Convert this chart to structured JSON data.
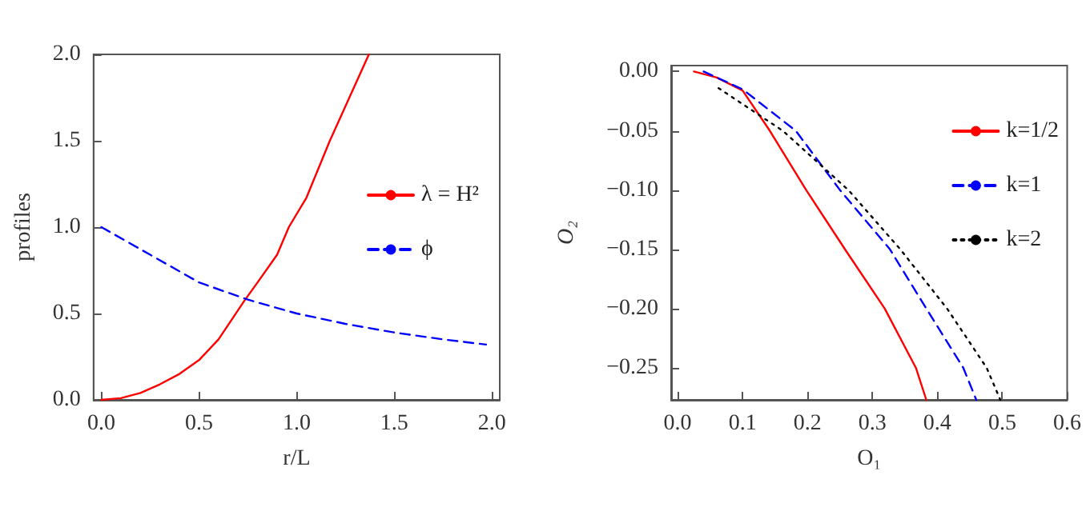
{
  "chart_data": [
    {
      "type": "line",
      "xlabel": "r/L",
      "ylabel": "profiles",
      "xlim": [
        -0.04,
        2.04
      ],
      "ylim": [
        0,
        2
      ],
      "xticks": [
        {
          "value": 0,
          "label": "0.0"
        },
        {
          "value": 0.5,
          "label": "0.5"
        },
        {
          "value": 1,
          "label": "1.0"
        },
        {
          "value": 1.5,
          "label": "1.5"
        },
        {
          "value": 2,
          "label": "2.0"
        }
      ],
      "yticks": [
        {
          "value": 0,
          "label": "0.0"
        },
        {
          "value": 0.5,
          "label": "0.5"
        },
        {
          "value": 1,
          "label": "1.0"
        },
        {
          "value": 1.5,
          "label": "1.5"
        },
        {
          "value": 2,
          "label": "2.0"
        }
      ],
      "grid": false,
      "legend": "right",
      "marker": "none",
      "series": [
        {
          "name": "λ = H²",
          "color": "#ff0000",
          "line_style": "solid",
          "x": [
            0,
            0.1,
            0.2,
            0.3,
            0.4,
            0.5,
            0.6,
            0.73,
            0.8,
            0.9,
            0.96,
            1.05,
            1.17,
            1.27,
            1.37
          ],
          "values": [
            0,
            0.01,
            0.04,
            0.09,
            0.15,
            0.23,
            0.35,
            0.57,
            0.68,
            0.84,
            1.0,
            1.17,
            1.5,
            1.75,
            2.0
          ]
        },
        {
          "name": "ϕ",
          "color": "#0000ff",
          "line_style": "dashed",
          "x": [
            0,
            0.25,
            0.5,
            0.75,
            1.0,
            1.25,
            1.5,
            1.75,
            1.97
          ],
          "values": [
            1.0,
            0.84,
            0.68,
            0.58,
            0.5,
            0.44,
            0.39,
            0.35,
            0.32
          ]
        }
      ]
    },
    {
      "type": "line",
      "xlabel": "O₁",
      "ylabel": "O₂",
      "xlim": [
        -0.01,
        0.6
      ],
      "ylim": [
        -0.277,
        0.005
      ],
      "xticks": [
        {
          "value": 0,
          "label": "0.0"
        },
        {
          "value": 0.1,
          "label": "0.1"
        },
        {
          "value": 0.2,
          "label": "0.2"
        },
        {
          "value": 0.3,
          "label": "0.3"
        },
        {
          "value": 0.4,
          "label": "0.4"
        },
        {
          "value": 0.5,
          "label": "0.5"
        },
        {
          "value": 0.6,
          "label": "0.6"
        }
      ],
      "yticks": [
        {
          "value": 0,
          "label": "0.00"
        },
        {
          "value": -0.05,
          "label": "−0.05"
        },
        {
          "value": -0.1,
          "label": "−0.10"
        },
        {
          "value": -0.15,
          "label": "−0.15"
        },
        {
          "value": -0.2,
          "label": "−0.20"
        },
        {
          "value": -0.25,
          "label": "−0.25"
        }
      ],
      "grid": false,
      "legend": "top right",
      "marker": "none",
      "series": [
        {
          "name": "k=1/2",
          "color": "#ff0000",
          "line_style": "solid",
          "x": [
            0.025,
            0.06,
            0.1,
            0.142,
            0.198,
            0.259,
            0.319,
            0.367,
            0.383
          ],
          "values": [
            0,
            -0.005,
            -0.016,
            -0.05,
            -0.1,
            -0.151,
            -0.2,
            -0.25,
            -0.277
          ]
        },
        {
          "name": "k=1",
          "color": "#0000ff",
          "line_style": "dashed",
          "x": [
            0.04,
            0.1,
            0.182,
            0.25,
            0.327,
            0.383,
            0.44,
            0.46
          ],
          "values": [
            0,
            -0.015,
            -0.05,
            -0.1,
            -0.15,
            -0.2,
            -0.25,
            -0.277
          ]
        },
        {
          "name": "k=2",
          "color": "#000000",
          "line_style": "dotted",
          "x": [
            0.063,
            0.162,
            0.263,
            0.343,
            0.415,
            0.476,
            0.497
          ],
          "values": [
            -0.014,
            -0.05,
            -0.1,
            -0.15,
            -0.2,
            -0.25,
            -0.277
          ]
        }
      ]
    }
  ]
}
